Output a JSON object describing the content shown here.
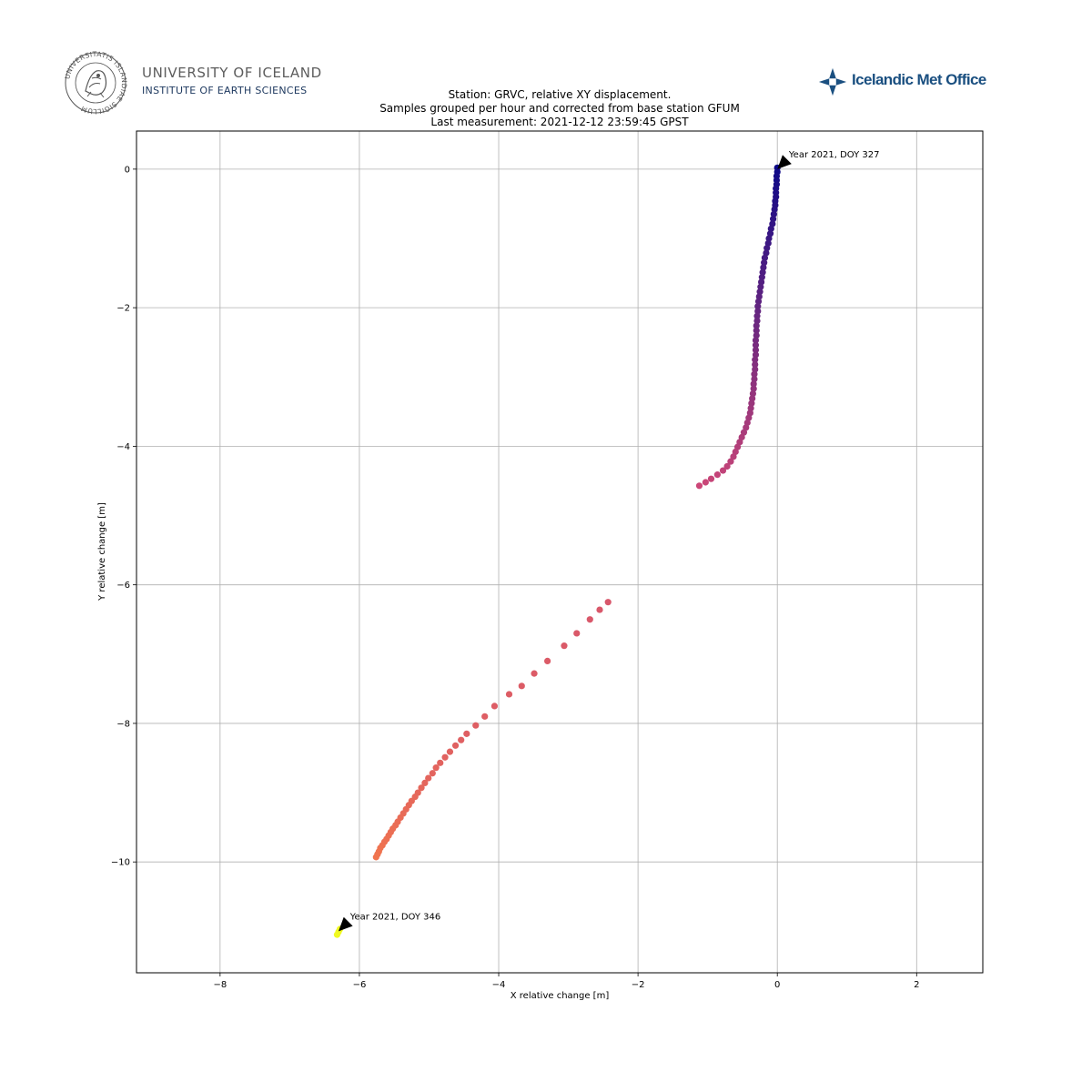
{
  "logos": {
    "left": {
      "name": "UNIVERSITY OF ICELAND",
      "subtitle": "INSTITUTE OF EARTH SCIENCES",
      "seal_text": "UNIVERSITATIS ISLANDIAE SIGILLUM"
    },
    "right": {
      "name": "Icelandic Met Office",
      "brand_color": "#1a4f80"
    }
  },
  "chart_data": {
    "type": "scatter",
    "title": [
      "Station: GRVC, relative XY displacement.",
      "Samples grouped per hour and corrected from base station GFUM",
      "Last measurement: 2021-12-12 23:59:45 GPST"
    ],
    "xlabel": "X relative change [m]",
    "ylabel": "Y relative change [m]",
    "xlim": [
      -9.2,
      2.95
    ],
    "ylim": [
      -11.6,
      0.55
    ],
    "xticks": [
      -8,
      -6,
      -4,
      -2,
      0,
      2
    ],
    "yticks": [
      0,
      -2,
      -4,
      -6,
      -8,
      -10
    ],
    "tick_labels_x": [
      "−8",
      "−6",
      "−4",
      "−2",
      "0",
      "2"
    ],
    "tick_labels_y": [
      "0",
      "−2",
      "−4",
      "−6",
      "−8",
      "−10"
    ],
    "grid": true,
    "colormap": "plasma",
    "colors": {
      "start": "#0d0887",
      "mid": "#cc4778",
      "late": "#f0744e",
      "end": "#f0f921",
      "arrow": "#000000",
      "grid": "#b0b0b0"
    },
    "series": [
      {
        "points": [
          [
            0.0,
            0.02
          ],
          [
            0.0,
            -0.04
          ],
          [
            -0.01,
            -0.1
          ],
          [
            -0.01,
            -0.16
          ],
          [
            -0.01,
            -0.22
          ],
          [
            -0.02,
            -0.28
          ],
          [
            -0.02,
            -0.34
          ],
          [
            -0.02,
            -0.4
          ],
          [
            -0.03,
            -0.46
          ],
          [
            -0.03,
            -0.52
          ],
          [
            -0.04,
            -0.58
          ],
          [
            -0.05,
            -0.65
          ],
          [
            -0.06,
            -0.72
          ],
          [
            -0.07,
            -0.79
          ],
          [
            -0.09,
            -0.86
          ],
          [
            -0.1,
            -0.93
          ],
          [
            -0.12,
            -1.0
          ],
          [
            -0.13,
            -1.07
          ],
          [
            -0.15,
            -1.14
          ],
          [
            -0.16,
            -1.21
          ],
          [
            -0.18,
            -1.28
          ],
          [
            -0.19,
            -1.35
          ],
          [
            -0.2,
            -1.42
          ],
          [
            -0.21,
            -1.49
          ],
          [
            -0.22,
            -1.56
          ],
          [
            -0.23,
            -1.63
          ],
          [
            -0.24,
            -1.7
          ],
          [
            -0.25,
            -1.77
          ],
          [
            -0.26,
            -1.84
          ],
          [
            -0.27,
            -1.91
          ],
          [
            -0.28,
            -1.98
          ],
          [
            -0.28,
            -2.05
          ],
          [
            -0.29,
            -2.12
          ],
          [
            -0.29,
            -2.19
          ],
          [
            -0.3,
            -2.26
          ],
          [
            -0.3,
            -2.33
          ],
          [
            -0.3,
            -2.4
          ],
          [
            -0.31,
            -2.47
          ],
          [
            -0.31,
            -2.54
          ],
          [
            -0.31,
            -2.61
          ],
          [
            -0.31,
            -2.68
          ],
          [
            -0.32,
            -2.75
          ],
          [
            -0.32,
            -2.82
          ],
          [
            -0.32,
            -2.89
          ],
          [
            -0.33,
            -2.96
          ],
          [
            -0.33,
            -3.03
          ],
          [
            -0.34,
            -3.1
          ],
          [
            -0.34,
            -3.17
          ],
          [
            -0.35,
            -3.24
          ],
          [
            -0.36,
            -3.31
          ],
          [
            -0.37,
            -3.38
          ],
          [
            -0.38,
            -3.45
          ],
          [
            -0.39,
            -3.52
          ],
          [
            -0.41,
            -3.59
          ],
          [
            -0.43,
            -3.66
          ],
          [
            -0.45,
            -3.73
          ],
          [
            -0.48,
            -3.8
          ],
          [
            -0.51,
            -3.87
          ],
          [
            -0.54,
            -3.94
          ],
          [
            -0.57,
            -4.01
          ],
          [
            -0.6,
            -4.08
          ],
          [
            -0.63,
            -4.15
          ],
          [
            -0.67,
            -4.22
          ],
          [
            -0.72,
            -4.29
          ],
          [
            -0.78,
            -4.35
          ],
          [
            -0.86,
            -4.41
          ],
          [
            -0.95,
            -4.47
          ],
          [
            -1.03,
            -4.52
          ],
          [
            -1.12,
            -4.57
          ]
        ],
        "color_from": "#0d0887",
        "color_to": "#cc4778"
      },
      {
        "points": [
          [
            -2.43,
            -6.25
          ],
          [
            -2.55,
            -6.36
          ],
          [
            -2.69,
            -6.5
          ],
          [
            -2.88,
            -6.7
          ],
          [
            -3.06,
            -6.88
          ],
          [
            -3.3,
            -7.1
          ],
          [
            -3.49,
            -7.28
          ],
          [
            -3.67,
            -7.46
          ],
          [
            -3.85,
            -7.58
          ],
          [
            -4.06,
            -7.75
          ],
          [
            -4.2,
            -7.9
          ],
          [
            -4.33,
            -8.03
          ],
          [
            -4.46,
            -8.15
          ],
          [
            -4.54,
            -8.24
          ],
          [
            -4.62,
            -8.32
          ],
          [
            -4.7,
            -8.41
          ],
          [
            -4.77,
            -8.49
          ],
          [
            -4.84,
            -8.57
          ],
          [
            -4.9,
            -8.64
          ],
          [
            -4.95,
            -8.72
          ],
          [
            -5.01,
            -8.79
          ],
          [
            -5.06,
            -8.86
          ],
          [
            -5.11,
            -8.93
          ],
          [
            -5.16,
            -9.0
          ],
          [
            -5.2,
            -9.06
          ],
          [
            -5.25,
            -9.12
          ],
          [
            -5.29,
            -9.18
          ],
          [
            -5.33,
            -9.24
          ],
          [
            -5.37,
            -9.3
          ],
          [
            -5.41,
            -9.36
          ],
          [
            -5.45,
            -9.42
          ],
          [
            -5.48,
            -9.47
          ],
          [
            -5.52,
            -9.52
          ],
          [
            -5.55,
            -9.57
          ],
          [
            -5.58,
            -9.62
          ],
          [
            -5.61,
            -9.67
          ],
          [
            -5.64,
            -9.71
          ],
          [
            -5.67,
            -9.76
          ],
          [
            -5.7,
            -9.8
          ],
          [
            -5.72,
            -9.85
          ],
          [
            -5.74,
            -9.89
          ],
          [
            -5.76,
            -9.93
          ]
        ],
        "color_from": "#d8576b",
        "color_to": "#f0744e"
      },
      {
        "points": [
          [
            -6.32,
            -11.05
          ],
          [
            -6.3,
            -11.01
          ],
          [
            -6.28,
            -10.97
          ]
        ],
        "color_from": "#f0f921",
        "color_to": "#f0f921"
      }
    ],
    "annotations": [
      {
        "text": "Year 2021, DOY 327",
        "x": 0.0,
        "y": 0.0,
        "text_x": 0.14,
        "text_y": 0.14
      },
      {
        "text": "Year 2021, DOY 346",
        "x": -6.3,
        "y": -11.0,
        "text_x": -6.16,
        "text_y": -10.86
      }
    ]
  }
}
